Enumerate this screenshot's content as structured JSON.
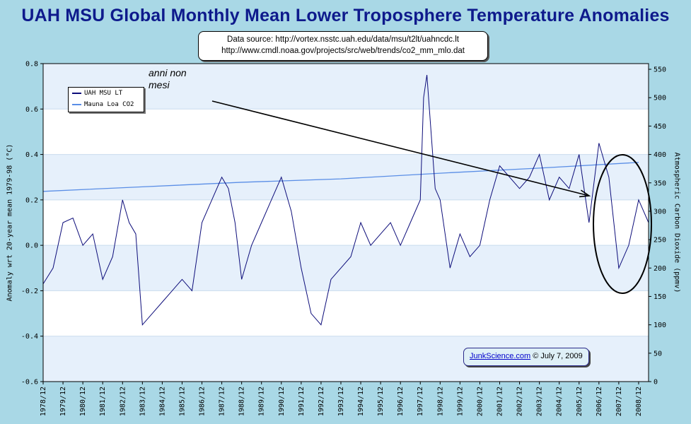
{
  "title": "UAH MSU Global Monthly Mean Lower Troposphere Temperature Anomalies",
  "source": {
    "line1": "Data source: http://vortex.nsstc.uah.edu/data/msu/t2lt/uahncdc.lt",
    "line2": "http://www.cmdl.noaa.gov/projects/src/web/trends/co2_mm_mlo.dat"
  },
  "credit": {
    "link": "JunkScience.com",
    "rest": " © July 7, 2009"
  },
  "annotation": {
    "line1": "anni non",
    "line2": "mesi"
  },
  "legend": {
    "uah": "UAH MSU LT",
    "co2": "Mauna Loa CO2"
  },
  "colors": {
    "uah": "#0d0d7a",
    "co2": "#5a8ee6",
    "band": "#e6f0fb",
    "plot_bg": "#ffffff",
    "background": "#a9d8e6"
  },
  "chart_data": {
    "type": "line",
    "title": "UAH MSU Global Monthly Mean Lower Troposphere Temperature Anomalies",
    "ylabel": "Anomaly wrt 20-year mean 1979-98 (°C)",
    "y2label": "Atmospheric Carbon Dioxide (ppmv)",
    "ylim": [
      -0.6,
      0.8
    ],
    "y2lim": [
      0,
      560
    ],
    "yticks": [
      "-0.6",
      "-0.4",
      "-0.2",
      "0.0",
      "0.2",
      "0.4",
      "0.6",
      "0.8"
    ],
    "y2ticks": [
      "0",
      "50",
      "100",
      "150",
      "200",
      "250",
      "300",
      "350",
      "400",
      "450",
      "500",
      "550"
    ],
    "xticks": [
      "1978/12",
      "1979/12",
      "1980/12",
      "1981/12",
      "1982/12",
      "1983/12",
      "1984/12",
      "1985/12",
      "1986/12",
      "1987/12",
      "1988/12",
      "1989/12",
      "1990/12",
      "1991/12",
      "1992/12",
      "1993/12",
      "1994/12",
      "1995/12",
      "1996/12",
      "1997/12",
      "1998/12",
      "1999/12",
      "2000/12",
      "2001/12",
      "2002/12",
      "2003/12",
      "2004/12",
      "2005/12",
      "2006/12",
      "2007/12",
      "2008/12"
    ],
    "grid": true,
    "legend_position": "top-left",
    "series": [
      {
        "name": "UAH MSU LT",
        "axis": "left",
        "x": [
          "1978/12",
          "1979/06",
          "1979/12",
          "1980/06",
          "1980/12",
          "1981/06",
          "1981/12",
          "1982/06",
          "1982/12",
          "1983/04",
          "1983/08",
          "1983/12",
          "1984/06",
          "1984/12",
          "1985/06",
          "1985/12",
          "1986/06",
          "1986/12",
          "1987/06",
          "1987/12",
          "1988/04",
          "1988/08",
          "1988/12",
          "1989/06",
          "1989/12",
          "1990/06",
          "1990/12",
          "1991/06",
          "1991/12",
          "1992/06",
          "1992/12",
          "1993/06",
          "1993/12",
          "1994/06",
          "1994/12",
          "1995/06",
          "1995/12",
          "1996/06",
          "1996/12",
          "1997/06",
          "1997/12",
          "1998/02",
          "1998/04",
          "1998/06",
          "1998/09",
          "1998/12",
          "1999/06",
          "1999/12",
          "2000/06",
          "2000/12",
          "2001/06",
          "2001/12",
          "2002/06",
          "2002/12",
          "2003/06",
          "2003/12",
          "2004/06",
          "2004/12",
          "2005/06",
          "2005/12",
          "2006/06",
          "2006/12",
          "2007/06",
          "2007/12",
          "2008/06",
          "2008/12",
          "2009/06"
        ],
        "values": [
          -0.17,
          -0.1,
          0.1,
          0.12,
          0.0,
          0.05,
          -0.15,
          -0.05,
          0.2,
          0.1,
          0.05,
          -0.35,
          -0.3,
          -0.25,
          -0.2,
          -0.15,
          -0.2,
          0.1,
          0.2,
          0.3,
          0.25,
          0.1,
          -0.15,
          0.0,
          0.1,
          0.2,
          0.3,
          0.15,
          -0.1,
          -0.3,
          -0.35,
          -0.15,
          -0.1,
          -0.05,
          0.1,
          0.0,
          0.05,
          0.1,
          0.0,
          0.1,
          0.2,
          0.65,
          0.75,
          0.55,
          0.25,
          0.2,
          -0.1,
          0.05,
          -0.05,
          0.0,
          0.2,
          0.35,
          0.3,
          0.25,
          0.3,
          0.4,
          0.2,
          0.3,
          0.25,
          0.4,
          0.1,
          0.45,
          0.3,
          -0.1,
          0.0,
          0.2,
          0.1
        ]
      },
      {
        "name": "Mauna Loa CO2",
        "axis": "right",
        "x": [
          "1978/12",
          "1983/12",
          "1988/12",
          "1993/12",
          "1998/12",
          "2003/12",
          "2008/12"
        ],
        "values": [
          335,
          343,
          351,
          357,
          367,
          376,
          386
        ]
      }
    ]
  }
}
